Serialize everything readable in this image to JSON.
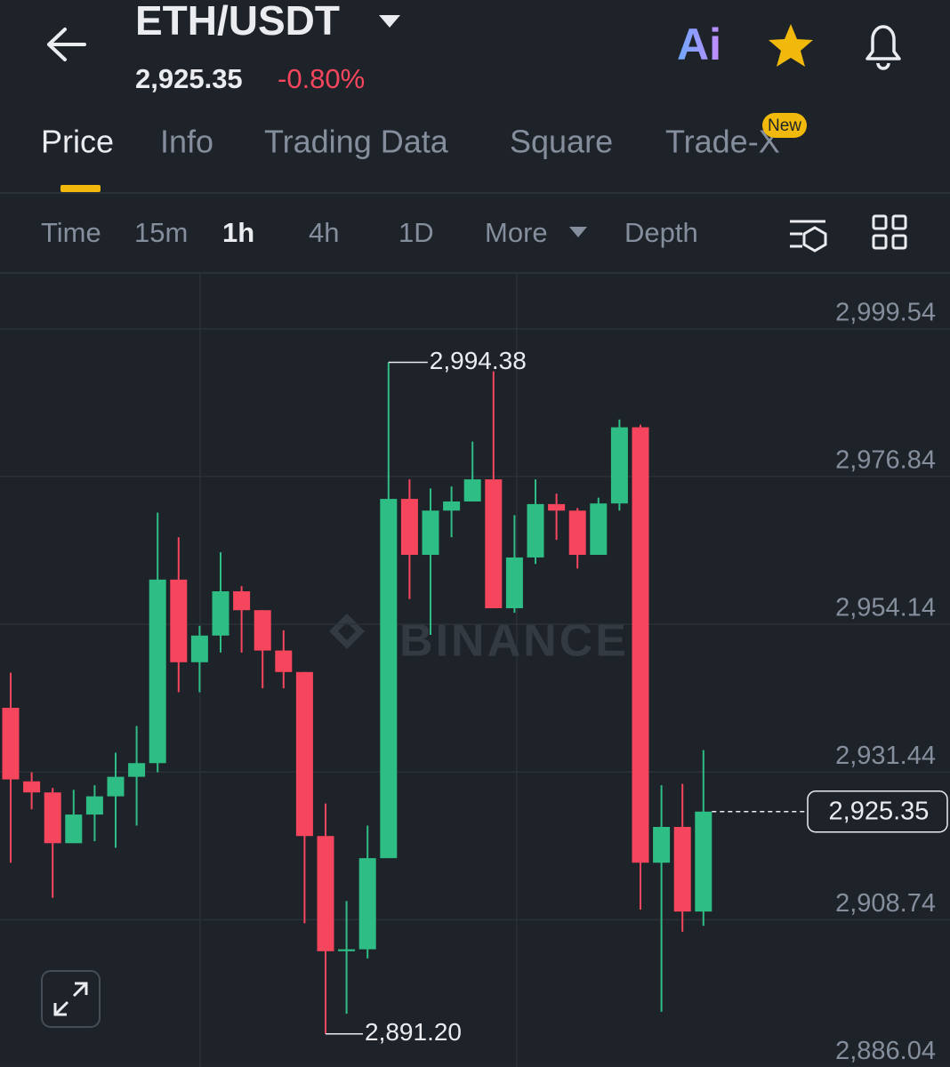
{
  "header": {
    "title": "ETH/USDT",
    "price": "2,925.35",
    "change": "-0.80%",
    "ai": "Ai"
  },
  "tabs": [
    "Price",
    "Info",
    "Trading Data",
    "Square",
    "Trade-X"
  ],
  "new_badge": "New",
  "intervals": [
    "Time",
    "15m",
    "1h",
    "4h",
    "1D",
    "More",
    "Depth"
  ],
  "chart_data": {
    "type": "candlestick",
    "open": [
      2941.3,
      2930.0,
      2928.3,
      2920.5,
      2924.9,
      2927.7,
      2930.7,
      2932.8,
      2961.0,
      2948.3,
      2952.4,
      2959.2,
      2956.3,
      2950.1,
      2946.8,
      2921.6,
      2903.9,
      2904.2,
      2918.2,
      2973.4,
      2964.8,
      2971.6,
      2973.0,
      2976.4,
      2956.6,
      2964.4,
      2972.6,
      2971.6,
      2964.8,
      2972.7,
      2984.4,
      2917.5,
      2923.0,
      2910.0
    ],
    "high": [
      2946.7,
      2931.4,
      2929.0,
      2928.7,
      2929.4,
      2934.4,
      2938.5,
      2971.3,
      2967.5,
      2953.9,
      2965.2,
      2960.0,
      2956.3,
      2953.2,
      2946.8,
      2926.6,
      2911.6,
      2923.2,
      2994.38,
      2976.4,
      2975.0,
      2975.3,
      2982.2,
      2993.0,
      2970.9,
      2976.4,
      2974.2,
      2972.0,
      2973.6,
      2985.6,
      2984.8,
      2929.4,
      2929.6,
      2934.8
    ],
    "low": [
      2917.5,
      2925.7,
      2912.1,
      2920.5,
      2920.8,
      2919.8,
      2923.2,
      2931.4,
      2943.7,
      2943.7,
      2949.8,
      2949.8,
      2944.3,
      2944.3,
      2908.2,
      2891.2,
      2894.3,
      2902.8,
      2918.2,
      2958.0,
      2952.5,
      2967.5,
      2973.0,
      2956.6,
      2955.9,
      2963.4,
      2967.1,
      2962.7,
      2964.8,
      2971.6,
      2910.3,
      2894.6,
      2906.9,
      2907.8
    ],
    "close": [
      2930.3,
      2928.3,
      2920.5,
      2924.9,
      2927.7,
      2930.7,
      2932.8,
      2961.0,
      2948.3,
      2952.4,
      2959.2,
      2956.3,
      2950.1,
      2946.8,
      2921.6,
      2903.9,
      2904.2,
      2918.2,
      2973.4,
      2964.8,
      2971.6,
      2973.0,
      2976.4,
      2956.6,
      2964.4,
      2972.6,
      2971.6,
      2964.8,
      2972.7,
      2984.4,
      2917.5,
      2923.0,
      2910.0,
      2925.35
    ],
    "up_color": "#2ebd85",
    "down_color": "#f6465d",
    "ylim": [
      2884.2,
      3007.7
    ],
    "yticks": [
      {
        "value": 2999.54,
        "label": "2,999.54"
      },
      {
        "value": 2976.84,
        "label": "2,976.84"
      },
      {
        "value": 2954.14,
        "label": "2,954.14"
      },
      {
        "value": 2931.44,
        "label": "2,931.44"
      },
      {
        "value": 2908.74,
        "label": "2,908.74"
      },
      {
        "value": 2886.04,
        "label": "2,886.04"
      }
    ],
    "grid": true,
    "max_label": {
      "value": 2994.38,
      "label": "2,994.38"
    },
    "min_label": {
      "value": 2891.2,
      "label": "2,891.20"
    },
    "last_price": {
      "value": 2925.35,
      "label": "2,925.35"
    },
    "watermark": "BINANCE"
  }
}
